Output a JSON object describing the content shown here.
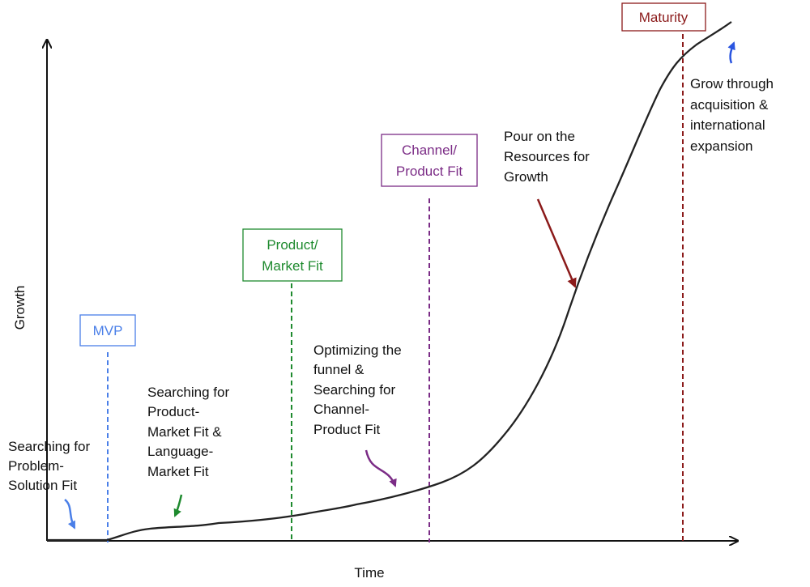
{
  "axes": {
    "x_label": "Time",
    "y_label": "Growth"
  },
  "stages": [
    {
      "id": "mvp",
      "label_lines": [
        "MVP"
      ],
      "color": "#4a7fe8"
    },
    {
      "id": "pmf",
      "label_lines": [
        "Product/",
        "Market Fit"
      ],
      "color": "#1e8a2e"
    },
    {
      "id": "cpf",
      "label_lines": [
        "Channel/",
        "Product Fit"
      ],
      "color": "#7b2c86"
    },
    {
      "id": "maturity",
      "label_lines": [
        "Maturity"
      ],
      "color": "#8b1a1a"
    }
  ],
  "annotations": [
    {
      "id": "problem-solution",
      "lines": [
        "Searching for",
        "Problem-",
        "Solution Fit"
      ],
      "arrow_color": "#4a7fe8"
    },
    {
      "id": "product-market",
      "lines": [
        "Searching for",
        "Product-",
        "Market Fit &",
        "Language-",
        "Market Fit"
      ],
      "arrow_color": "#1e8a2e"
    },
    {
      "id": "optimizing",
      "lines": [
        "Optimizing the",
        "funnel &",
        "Searching for",
        "Channel-",
        "Product Fit"
      ],
      "arrow_color": "#7b2c86"
    },
    {
      "id": "resources",
      "lines": [
        "Pour on the",
        "Resources for",
        "Growth"
      ],
      "arrow_color": "#8b1a1a"
    },
    {
      "id": "acquisition",
      "lines": [
        "Grow through",
        "acquisition &",
        "international",
        "expansion"
      ],
      "arrow_color": "#2a55e0"
    }
  ]
}
